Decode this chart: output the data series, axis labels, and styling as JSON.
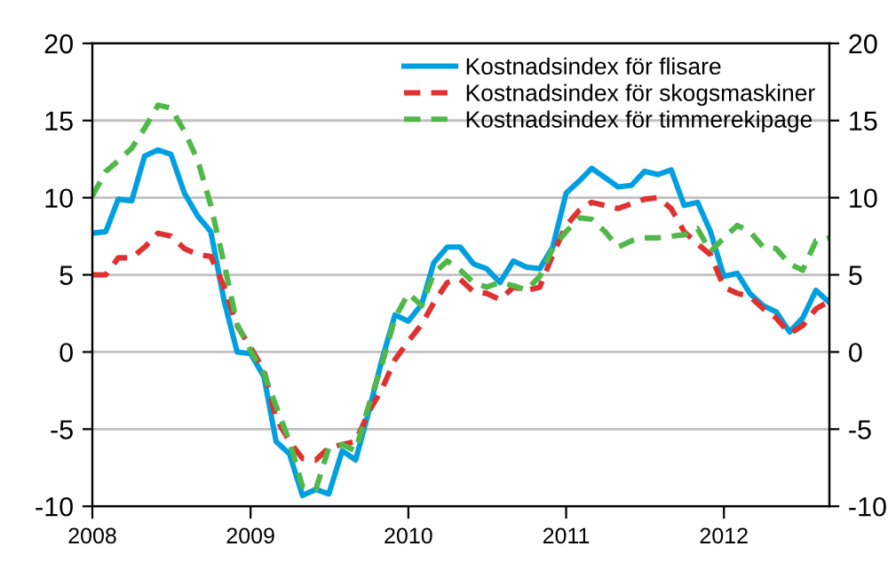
{
  "chart_data": {
    "type": "line",
    "x": [
      "2008-01",
      "2008-02",
      "2008-03",
      "2008-04",
      "2008-05",
      "2008-06",
      "2008-07",
      "2008-08",
      "2008-09",
      "2008-10",
      "2008-11",
      "2008-12",
      "2009-01",
      "2009-02",
      "2009-03",
      "2009-04",
      "2009-05",
      "2009-06",
      "2009-07",
      "2009-08",
      "2009-09",
      "2009-10",
      "2009-11",
      "2009-12",
      "2010-01",
      "2010-02",
      "2010-03",
      "2010-04",
      "2010-05",
      "2010-06",
      "2010-07",
      "2010-08",
      "2010-09",
      "2010-10",
      "2010-11",
      "2010-12",
      "2011-01",
      "2011-02",
      "2011-03",
      "2011-04",
      "2011-05",
      "2011-06",
      "2011-07",
      "2011-08",
      "2011-09",
      "2011-10",
      "2011-11",
      "2011-12",
      "2012-01",
      "2012-02",
      "2012-03",
      "2012-04",
      "2012-05",
      "2012-06",
      "2012-07",
      "2012-08",
      "2012-09"
    ],
    "series": [
      {
        "name": "Kostnadsindex för flisare",
        "color": "#00a0e0",
        "line_style": "solid",
        "values": [
          7.7,
          7.8,
          9.9,
          9.8,
          12.7,
          13.1,
          12.8,
          10.3,
          8.8,
          7.8,
          3.3,
          0.0,
          -0.1,
          -1.6,
          -5.8,
          -6.6,
          -9.3,
          -8.9,
          -9.2,
          -6.4,
          -7.0,
          -3.9,
          -0.5,
          2.4,
          2.0,
          3.1,
          5.8,
          6.8,
          6.8,
          5.7,
          5.4,
          4.5,
          5.9,
          5.5,
          5.4,
          6.8,
          10.3,
          11.1,
          11.9,
          11.3,
          10.7,
          10.8,
          11.7,
          11.5,
          11.8,
          9.5,
          9.7,
          7.8,
          4.9,
          5.1,
          3.8,
          3.0,
          2.6,
          1.3,
          2.2,
          4.0,
          3.2
        ]
      },
      {
        "name": "Kostnadsindex för skogsmaskiner",
        "color": "#e03030",
        "line_style": "dashed",
        "values": [
          5.0,
          5.0,
          6.1,
          6.1,
          6.8,
          7.7,
          7.5,
          6.7,
          6.3,
          6.2,
          4.2,
          1.7,
          0.3,
          -1.2,
          -4.3,
          -5.8,
          -6.9,
          -7.0,
          -6.2,
          -6.0,
          -5.8,
          -3.9,
          -2.4,
          -0.5,
          0.7,
          1.8,
          3.2,
          4.5,
          4.7,
          3.9,
          3.8,
          3.4,
          4.2,
          4.0,
          4.2,
          6.3,
          8.2,
          9.2,
          9.7,
          9.5,
          9.3,
          9.6,
          9.9,
          10.0,
          9.3,
          7.8,
          7.0,
          6.3,
          4.2,
          3.8,
          3.6,
          2.8,
          2.2,
          1.2,
          1.7,
          2.8,
          3.3
        ]
      },
      {
        "name": "Kostnadsindex för timmerekipage",
        "color": "#50b848",
        "line_style": "dashed",
        "values": [
          10.1,
          11.7,
          12.4,
          13.2,
          14.5,
          16.0,
          15.8,
          14.3,
          12.4,
          9.5,
          5.7,
          1.8,
          0.1,
          -1.4,
          -3.5,
          -5.8,
          -8.7,
          -8.9,
          -6.2,
          -6.0,
          -6.4,
          -3.5,
          -0.8,
          2.2,
          3.8,
          3.0,
          5.1,
          5.9,
          5.3,
          4.5,
          4.2,
          4.5,
          4.3,
          4.0,
          4.9,
          6.7,
          7.8,
          8.7,
          8.6,
          7.8,
          6.8,
          7.2,
          7.4,
          7.4,
          7.5,
          7.6,
          8.0,
          6.5,
          7.4,
          8.2,
          7.8,
          6.8,
          6.7,
          5.7,
          5.3,
          7.2,
          7.4
        ]
      }
    ],
    "xlim": [
      "2008-01",
      "2012-09"
    ],
    "xticks": [
      "2008",
      "2009",
      "2010",
      "2011",
      "2012"
    ],
    "ylim": [
      -10,
      20
    ],
    "yticks": [
      -10,
      -5,
      0,
      5,
      10,
      15,
      20
    ],
    "y2lim": [
      -10,
      20
    ],
    "y2ticks": [
      -10,
      -5,
      0,
      5,
      10,
      15,
      20
    ],
    "grid": "y",
    "legend": "top right",
    "marker": "none"
  }
}
